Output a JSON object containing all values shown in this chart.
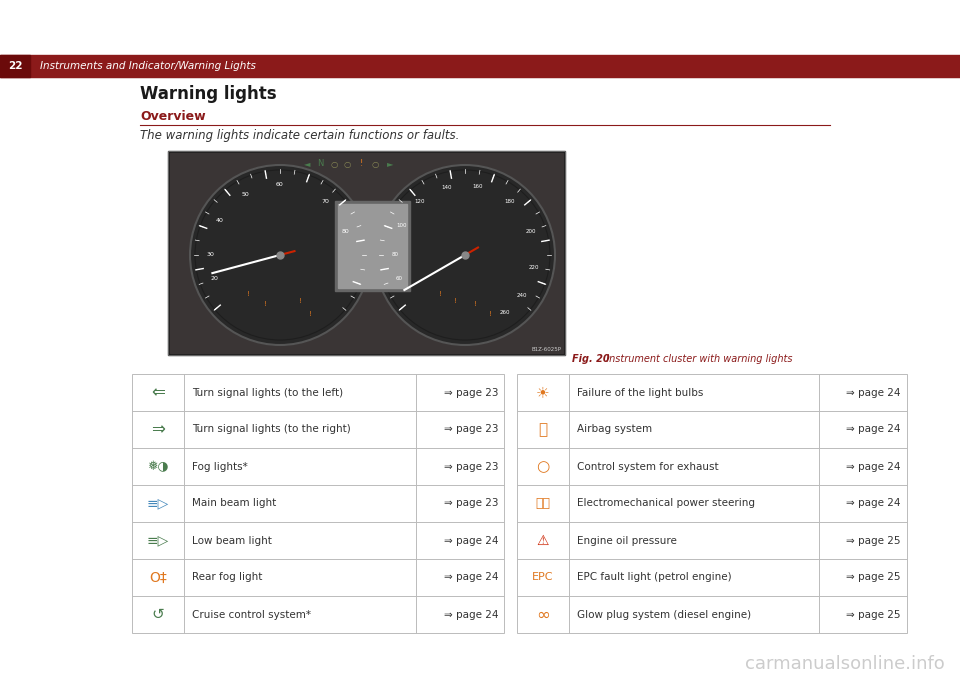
{
  "bg_color": "#ffffff",
  "page_num": "22",
  "header_bg": "#8B1A1A",
  "header_text": "Instruments and Indicator/Warning Lights",
  "header_line_color": "#8B1A1A",
  "section_title": "Warning lights",
  "section_title_color": "#1a1a1a",
  "subsection_title": "Overview",
  "subsection_title_color": "#8B1A1A",
  "subsection_line_color": "#8B1A1A",
  "body_text": "The warning lights indicate certain functions or faults.",
  "fig_caption_prefix": "Fig. 20",
  "fig_caption_rest": "  Instrument cluster with warning lights",
  "fig_caption_color": "#8B1A1A",
  "table_line_color": "#bbbbbb",
  "table_text_color": "#333333",
  "table_page_color": "#333333",
  "watermark_text": "carmanualsonline.info",
  "watermark_color": "#aaaaaa"
}
